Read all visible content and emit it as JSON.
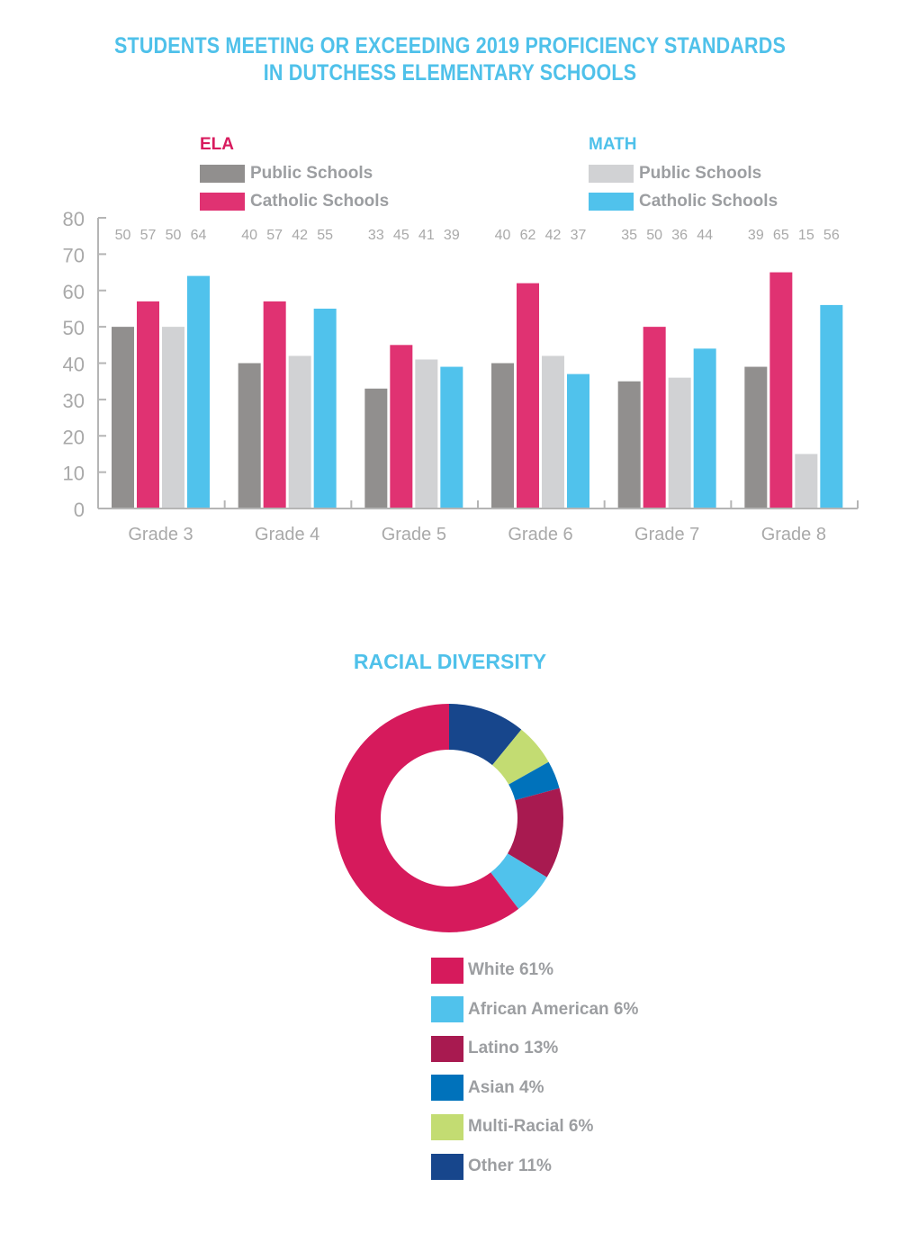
{
  "header": {
    "title_line1": "STUDENTS MEETING OR EXCEEDING 2019 PROFICIENCY STANDARDS",
    "title_line2": "IN DUTCHESS ELEMENTARY SCHOOLS"
  },
  "legend": {
    "ela": {
      "heading": "ELA",
      "heading_color": "#d81b5e",
      "items": [
        {
          "label": "Public Schools",
          "color": "#918f8e"
        },
        {
          "label": "Catholic Schools",
          "color": "#e03272"
        }
      ]
    },
    "math": {
      "heading": "MATH",
      "heading_color": "#4fc1ea",
      "items": [
        {
          "label": "Public Schools",
          "color": "#d1d2d4"
        },
        {
          "label": "Catholic Schools",
          "color": "#50c2ec"
        }
      ]
    }
  },
  "chart_data": [
    {
      "type": "bar",
      "title": "STUDENTS MEETING OR EXCEEDING 2019 PROFICIENCY STANDARDS IN DUTCHESS ELEMENTARY SCHOOLS",
      "xlabel": "",
      "ylabel": "",
      "ylim": [
        0,
        80
      ],
      "yticks": [
        0,
        10,
        20,
        30,
        40,
        50,
        60,
        70,
        80
      ],
      "grid": false,
      "legend_position": "top",
      "categories": [
        "Grade 3",
        "Grade 4",
        "Grade 5",
        "Grade 6",
        "Grade 7",
        "Grade 8"
      ],
      "series": [
        {
          "name": "ELA Public Schools",
          "color": "#918f8e",
          "values": [
            50,
            40,
            33,
            40,
            35,
            39
          ]
        },
        {
          "name": "ELA Catholic Schools",
          "color": "#e03272",
          "values": [
            57,
            57,
            45,
            62,
            50,
            65
          ]
        },
        {
          "name": "MATH Public Schools",
          "color": "#d1d2d4",
          "values": [
            50,
            42,
            41,
            42,
            36,
            15
          ]
        },
        {
          "name": "MATH Catholic Schools",
          "color": "#50c2ec",
          "values": [
            64,
            55,
            39,
            37,
            44,
            56
          ]
        }
      ]
    },
    {
      "type": "pie",
      "donut": true,
      "title": "RACIAL DIVERSITY",
      "legend_position": "bottom",
      "slices_clockwise_from_top": [
        "Other",
        "Multi-Racial",
        "Asian",
        "Latino",
        "African American",
        "White"
      ],
      "slices": [
        {
          "label": "White",
          "value": 61,
          "display": "White 61%",
          "color": "#d61a5c"
        },
        {
          "label": "African American",
          "value": 6,
          "display": "African American 6%",
          "color": "#50c2ec"
        },
        {
          "label": "Latino",
          "value": 13,
          "display": "Latino 13%",
          "color": "#a81a50"
        },
        {
          "label": "Asian",
          "value": 4,
          "display": "Asian 4%",
          "color": "#0072bb"
        },
        {
          "label": "Multi-Racial",
          "value": 6,
          "display": "Multi-Racial 6%",
          "color": "#c3dc72"
        },
        {
          "label": "Other",
          "value": 11,
          "display": "Other 11%",
          "color": "#17468c"
        }
      ]
    }
  ]
}
